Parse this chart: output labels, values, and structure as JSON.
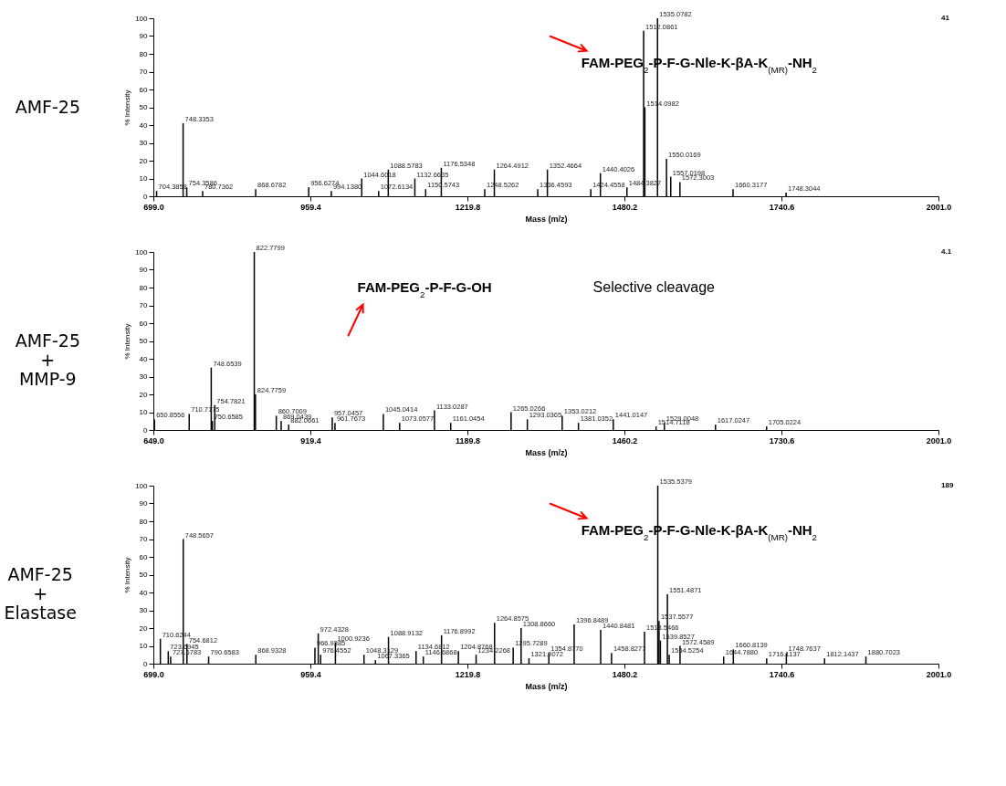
{
  "chart_data": [
    {
      "type": "bar",
      "title": "AMF-25",
      "xlabel": "Mass (m/z)",
      "ylabel": "% Intensity",
      "color": "#000000",
      "x": [
        704.3858,
        748.3353,
        754.3586,
        780.7362,
        868.6782,
        956.6274,
        994.138,
        1044.6018,
        1072.6134,
        1088.5783,
        1132.6635,
        1150.5743,
        1176.5348,
        1248.5262,
        1264.4912,
        1336.4593,
        1352.4664,
        1424.4558,
        1440.4026,
        1484.3827,
        1512.0861,
        1514.0982,
        1535.0782,
        1550.0169,
        1557.0198,
        1572.3003,
        1660.3177,
        1748.3044
      ],
      "values": [
        3,
        41,
        5,
        3,
        4,
        5,
        3,
        10,
        3,
        15,
        10,
        4,
        16,
        4,
        15,
        4,
        15,
        4,
        13,
        5,
        93,
        50,
        100,
        21,
        11,
        8,
        4,
        2
      ],
      "xlim": [
        699,
        2001
      ],
      "xticks": [
        {
          "value": 699,
          "label": "699.0"
        },
        959.4,
        1219.8,
        1480.2,
        1740.6,
        {
          "value": 2001,
          "label": "2001.0"
        }
      ],
      "ylim": [
        0,
        100
      ],
      "yticks": [
        0,
        10,
        20,
        30,
        40,
        50,
        60,
        70,
        80,
        90,
        100
      ],
      "annotations": [
        "FAM-PEG$_{2}$-P-F-G-Nle-K-βA-K$_{(MR)}$-NH$_{2}$",
        "41",
        {
          "text": "704.3858",
          "x": 704.3858,
          "y": 3
        },
        {
          "text": "748.3353",
          "x": 748.3353,
          "y": 41
        },
        {
          "text": "754.3586",
          "x": 754.3586,
          "y": 5
        },
        {
          "text": "780.7362",
          "x": 780.7362,
          "y": 3
        },
        {
          "text": "868.6782",
          "x": 868.6782,
          "y": 4
        },
        {
          "text": "956.6274",
          "x": 956.6274,
          "y": 5
        },
        {
          "text": "994.1380",
          "x": 994.138,
          "y": 3
        },
        {
          "text": "1044.6018",
          "x": 1044.6018,
          "y": 10
        },
        {
          "text": "1072.6134",
          "x": 1072.6134,
          "y": 3
        },
        {
          "text": "1088.5783",
          "x": 1088.5783,
          "y": 15
        },
        {
          "text": "1132.6635",
          "x": 1132.6635,
          "y": 10
        },
        {
          "text": "1150.5743",
          "x": 1150.5743,
          "y": 4
        },
        {
          "text": "1176.5348",
          "x": 1176.5348,
          "y": 16
        },
        {
          "text": "1248.5262",
          "x": 1248.5262,
          "y": 4
        },
        {
          "text": "1264.4912",
          "x": 1264.4912,
          "y": 15
        },
        {
          "text": "1336.4593",
          "x": 1336.4593,
          "y": 4
        },
        {
          "text": "1352.4664",
          "x": 1352.4664,
          "y": 15
        },
        {
          "text": "1424.4558",
          "x": 1424.4558,
          "y": 4
        },
        {
          "text": "1440.4026",
          "x": 1440.4026,
          "y": 13
        },
        {
          "text": "1484.3827",
          "x": 1484.3827,
          "y": 5
        },
        {
          "text": "1512.0861",
          "x": 1512.0861,
          "y": 93
        },
        {
          "text": "1514.0982",
          "x": 1514.0982,
          "y": 50
        },
        {
          "text": "1535.0782",
          "x": 1535.0782,
          "y": 100
        },
        {
          "text": "1550.0169",
          "x": 1550.0169,
          "y": 21
        },
        {
          "text": "1557.0198",
          "x": 1557.0198,
          "y": 11
        },
        {
          "text": "1572.3003",
          "x": 1572.3003,
          "y": 8
        },
        {
          "text": "1660.3177",
          "x": 1660.3177,
          "y": 4
        },
        {
          "text": "1748.3044",
          "x": 1748.3044,
          "y": 2
        }
      ]
    },
    {
      "type": "bar",
      "title": "AMF-25\n+\nMMP-9",
      "xlabel": "Mass (m/z)",
      "ylabel": "% Intensity",
      "color": "#000000",
      "x": [
        650.8556,
        710.7175,
        748.6539,
        750.6585,
        754.7821,
        822.7799,
        824.7759,
        860.7009,
        869.0439,
        882.0661,
        957.0457,
        961.7673,
        1045.0414,
        1073.0577,
        1133.0287,
        1161.0454,
        1265.0266,
        1293.0365,
        1353.0212,
        1381.0352,
        1441.0147,
        1514.7118,
        1529.0048,
        1617.0247,
        1705.0224
      ],
      "values": [
        6,
        9,
        35,
        5,
        14,
        100,
        20,
        8,
        5,
        3,
        7,
        4,
        9,
        4,
        11,
        4,
        10,
        6,
        8,
        4,
        6,
        2,
        4,
        3,
        2
      ],
      "xlim": [
        649,
        2001
      ],
      "xticks": [
        {
          "value": 649,
          "label": "649.0"
        },
        919.4,
        1189.8,
        1460.2,
        1730.6,
        {
          "value": 2001,
          "label": "2001.0"
        }
      ],
      "ylim": [
        0,
        100
      ],
      "yticks": [
        0,
        10,
        20,
        30,
        40,
        50,
        60,
        70,
        80,
        90,
        100
      ],
      "annotations": [
        "FAM-PEG$_{2}$-P-F-G-OH",
        "Selective cleavage",
        "4.1",
        {
          "text": "650.8556",
          "x": 650.8556,
          "y": 6
        },
        {
          "text": "710.7175",
          "x": 710.7175,
          "y": 9
        },
        {
          "text": "748.6539",
          "x": 748.6539,
          "y": 35
        },
        {
          "text": "750.6585",
          "x": 750.6585,
          "y": 5
        },
        {
          "text": "754.7821",
          "x": 754.7821,
          "y": 14
        },
        {
          "text": "822.7799",
          "x": 822.7799,
          "y": 100
        },
        {
          "text": "824.7759",
          "x": 824.7759,
          "y": 20
        },
        {
          "text": "860.7009",
          "x": 860.7009,
          "y": 8
        },
        {
          "text": "869.0439",
          "x": 869.0439,
          "y": 5
        },
        {
          "text": "882.0661",
          "x": 882.0661,
          "y": 3
        },
        {
          "text": "957.0457",
          "x": 957.0457,
          "y": 7
        },
        {
          "text": "961.7673",
          "x": 961.7673,
          "y": 4
        },
        {
          "text": "1045.0414",
          "x": 1045.0414,
          "y": 9
        },
        {
          "text": "1073.0577",
          "x": 1073.0577,
          "y": 4
        },
        {
          "text": "1133.0287",
          "x": 1133.0287,
          "y": 11
        },
        {
          "text": "1161.0454",
          "x": 1161.0454,
          "y": 4
        },
        {
          "text": "1265.0266",
          "x": 1265.0266,
          "y": 10
        },
        {
          "text": "1293.0365",
          "x": 1293.0365,
          "y": 6
        },
        {
          "text": "1353.0212",
          "x": 1353.0212,
          "y": 8
        },
        {
          "text": "1381.0352",
          "x": 1381.0352,
          "y": 4
        },
        {
          "text": "1441.0147",
          "x": 1441.0147,
          "y": 6
        },
        {
          "text": "1514.7118",
          "x": 1514.7118,
          "y": 2
        },
        {
          "text": "1529.0048",
          "x": 1529.0048,
          "y": 4
        },
        {
          "text": "1617.0247",
          "x": 1617.0247,
          "y": 3
        },
        {
          "text": "1705.0224",
          "x": 1705.0224,
          "y": 2
        }
      ]
    },
    {
      "type": "bar",
      "title": "AMF-25\n+\nElastase",
      "xlabel": "Mass (m/z)",
      "ylabel": "% Intensity",
      "color": "#000000",
      "x": [
        710.6244,
        723.6945,
        727.6783,
        748.5657,
        754.6812,
        790.6583,
        868.9328,
        966.9385,
        972.4328,
        976.4552,
        1000.9236,
        1048.3129,
        1067.3365,
        1088.9132,
        1134.6812,
        1146.6868,
        1176.8992,
        1204.8768,
        1234.2268,
        1264.8575,
        1295.7289,
        1308.866,
        1321.9072,
        1354.877,
        1396.8489,
        1440.8481,
        1458.8277,
        1513.5466,
        1535.5379,
        1537.5577,
        1539.8527,
        1551.4871,
        1554.5254,
        1572.4589,
        1644.788,
        1660.8139,
        1716.1137,
        1748.7637,
        1812.1437,
        1880.7023
      ],
      "values": [
        14,
        7,
        4,
        70,
        11,
        4,
        5,
        9,
        17,
        5,
        12,
        5,
        2,
        15,
        7,
        4,
        16,
        7,
        5,
        23,
        9,
        20,
        3,
        6,
        22,
        19,
        6,
        18,
        100,
        24,
        13,
        39,
        5,
        10,
        4,
        8,
        3,
        6,
        3,
        4
      ],
      "xlim": [
        699,
        2001
      ],
      "xticks": [
        {
          "value": 699,
          "label": "699.0"
        },
        959.4,
        1219.8,
        1480.2,
        1740.6,
        {
          "value": 2001,
          "label": "2001.0"
        }
      ],
      "ylim": [
        0,
        100
      ],
      "yticks": [
        0,
        10,
        20,
        30,
        40,
        50,
        60,
        70,
        80,
        90,
        100
      ],
      "annotations": [
        "FAM-PEG$_{2}$-P-F-G-Nle-K-βA-K$_{(MR)}$-NH$_{2}$",
        "189",
        {
          "text": "710.6244",
          "x": 710.6244,
          "y": 14
        },
        {
          "text": "723.6945",
          "x": 723.6945,
          "y": 7
        },
        {
          "text": "727.6783",
          "x": 727.6783,
          "y": 4
        },
        {
          "text": "748.5657",
          "x": 748.5657,
          "y": 70
        },
        {
          "text": "754.6812",
          "x": 754.6812,
          "y": 11
        },
        {
          "text": "790.6583",
          "x": 790.6583,
          "y": 4
        },
        {
          "text": "868.9328",
          "x": 868.9328,
          "y": 5
        },
        {
          "text": "966.9385",
          "x": 966.9385,
          "y": 9
        },
        {
          "text": "972.4328",
          "x": 972.4328,
          "y": 17
        },
        {
          "text": "976.4552",
          "x": 976.4552,
          "y": 5
        },
        {
          "text": "1000.9236",
          "x": 1000.9236,
          "y": 12
        },
        {
          "text": "1048.3129",
          "x": 1048.3129,
          "y": 5
        },
        {
          "text": "1067.3365",
          "x": 1067.3365,
          "y": 2
        },
        {
          "text": "1088.9132",
          "x": 1088.9132,
          "y": 15
        },
        {
          "text": "1134.6812",
          "x": 1134.6812,
          "y": 7
        },
        {
          "text": "1146.6868",
          "x": 1146.6868,
          "y": 4
        },
        {
          "text": "1176.8992",
          "x": 1176.8992,
          "y": 16
        },
        {
          "text": "1204.8768",
          "x": 1204.8768,
          "y": 7
        },
        {
          "text": "1234.2268",
          "x": 1234.2268,
          "y": 5
        },
        {
          "text": "1264.8575",
          "x": 1264.8575,
          "y": 23
        },
        {
          "text": "1295.7289",
          "x": 1295.7289,
          "y": 9
        },
        {
          "text": "1308.8660",
          "x": 1308.866,
          "y": 20
        },
        {
          "text": "1321.9072",
          "x": 1321.9072,
          "y": 3
        },
        {
          "text": "1354.8770",
          "x": 1354.877,
          "y": 6
        },
        {
          "text": "1396.8489",
          "x": 1396.8489,
          "y": 22
        },
        {
          "text": "1440.8481",
          "x": 1440.8481,
          "y": 19
        },
        {
          "text": "1458.8277",
          "x": 1458.8277,
          "y": 6
        },
        {
          "text": "1513.5466",
          "x": 1513.5466,
          "y": 18
        },
        {
          "text": "1535.5379",
          "x": 1535.5379,
          "y": 100
        },
        {
          "text": "1537.5577",
          "x": 1537.5577,
          "y": 24
        },
        {
          "text": "1539.8527",
          "x": 1539.8527,
          "y": 13
        },
        {
          "text": "1551.4871",
          "x": 1551.4871,
          "y": 39
        },
        {
          "text": "1554.5254",
          "x": 1554.5254,
          "y": 5
        },
        {
          "text": "1572.4589",
          "x": 1572.4589,
          "y": 10
        },
        {
          "text": "1644.7880",
          "x": 1644.788,
          "y": 4
        },
        {
          "text": "1660.8139",
          "x": 1660.8139,
          "y": 8
        },
        {
          "text": "1716.1137",
          "x": 1716.1137,
          "y": 3
        },
        {
          "text": "1748.7637",
          "x": 1748.7637,
          "y": 6
        },
        {
          "text": "1812.1437",
          "x": 1812.1437,
          "y": 3
        },
        {
          "text": "1880.7023",
          "x": 1880.7023,
          "y": 4
        }
      ]
    }
  ]
}
